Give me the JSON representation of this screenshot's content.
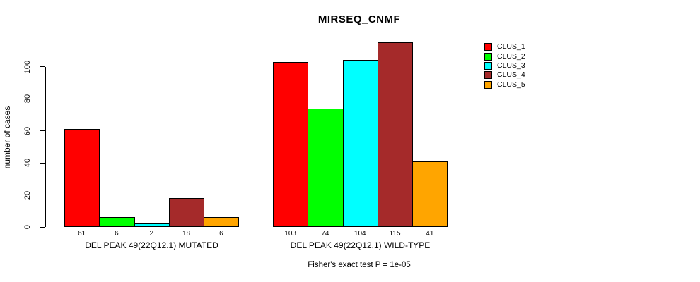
{
  "chart_data": {
    "type": "bar",
    "title": "MIRSEQ_CNMF",
    "ylabel": "number of cases",
    "xlabel": "",
    "ylim": [
      0,
      115
    ],
    "yticks": [
      0,
      20,
      40,
      60,
      80,
      100
    ],
    "grid": false,
    "legend_position": "right",
    "series_names": [
      "CLUS_1",
      "CLUS_2",
      "CLUS_3",
      "CLUS_4",
      "CLUS_5"
    ],
    "series_colors": [
      "#FF0000",
      "#00FF00",
      "#00FFFF",
      "#A52A2A",
      "#FFA500"
    ],
    "groups": [
      {
        "label": "DEL PEAK 49(22Q12.1) MUTATED",
        "values": [
          61,
          6,
          2,
          18,
          6
        ]
      },
      {
        "label": "DEL PEAK 49(22Q12.1) WILD-TYPE",
        "values": [
          103,
          74,
          104,
          115,
          41
        ]
      }
    ],
    "annotation": "Fisher's exact test P = 1e-05",
    "colors": {
      "background": "#FFFFFF",
      "axis": "#000000",
      "text": "#000000"
    }
  }
}
